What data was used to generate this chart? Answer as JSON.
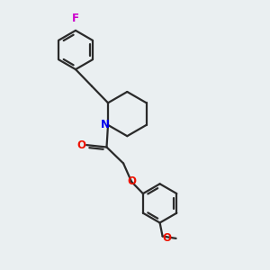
{
  "bg_color": "#eaeff1",
  "bond_color": "#2a2a2a",
  "N_color": "#0000ee",
  "O_color": "#ee1100",
  "F_color": "#cc00cc",
  "lw": 1.6,
  "figsize": [
    3.0,
    3.0
  ],
  "dpi": 100,
  "xlim": [
    0,
    10
  ],
  "ylim": [
    0,
    10
  ]
}
